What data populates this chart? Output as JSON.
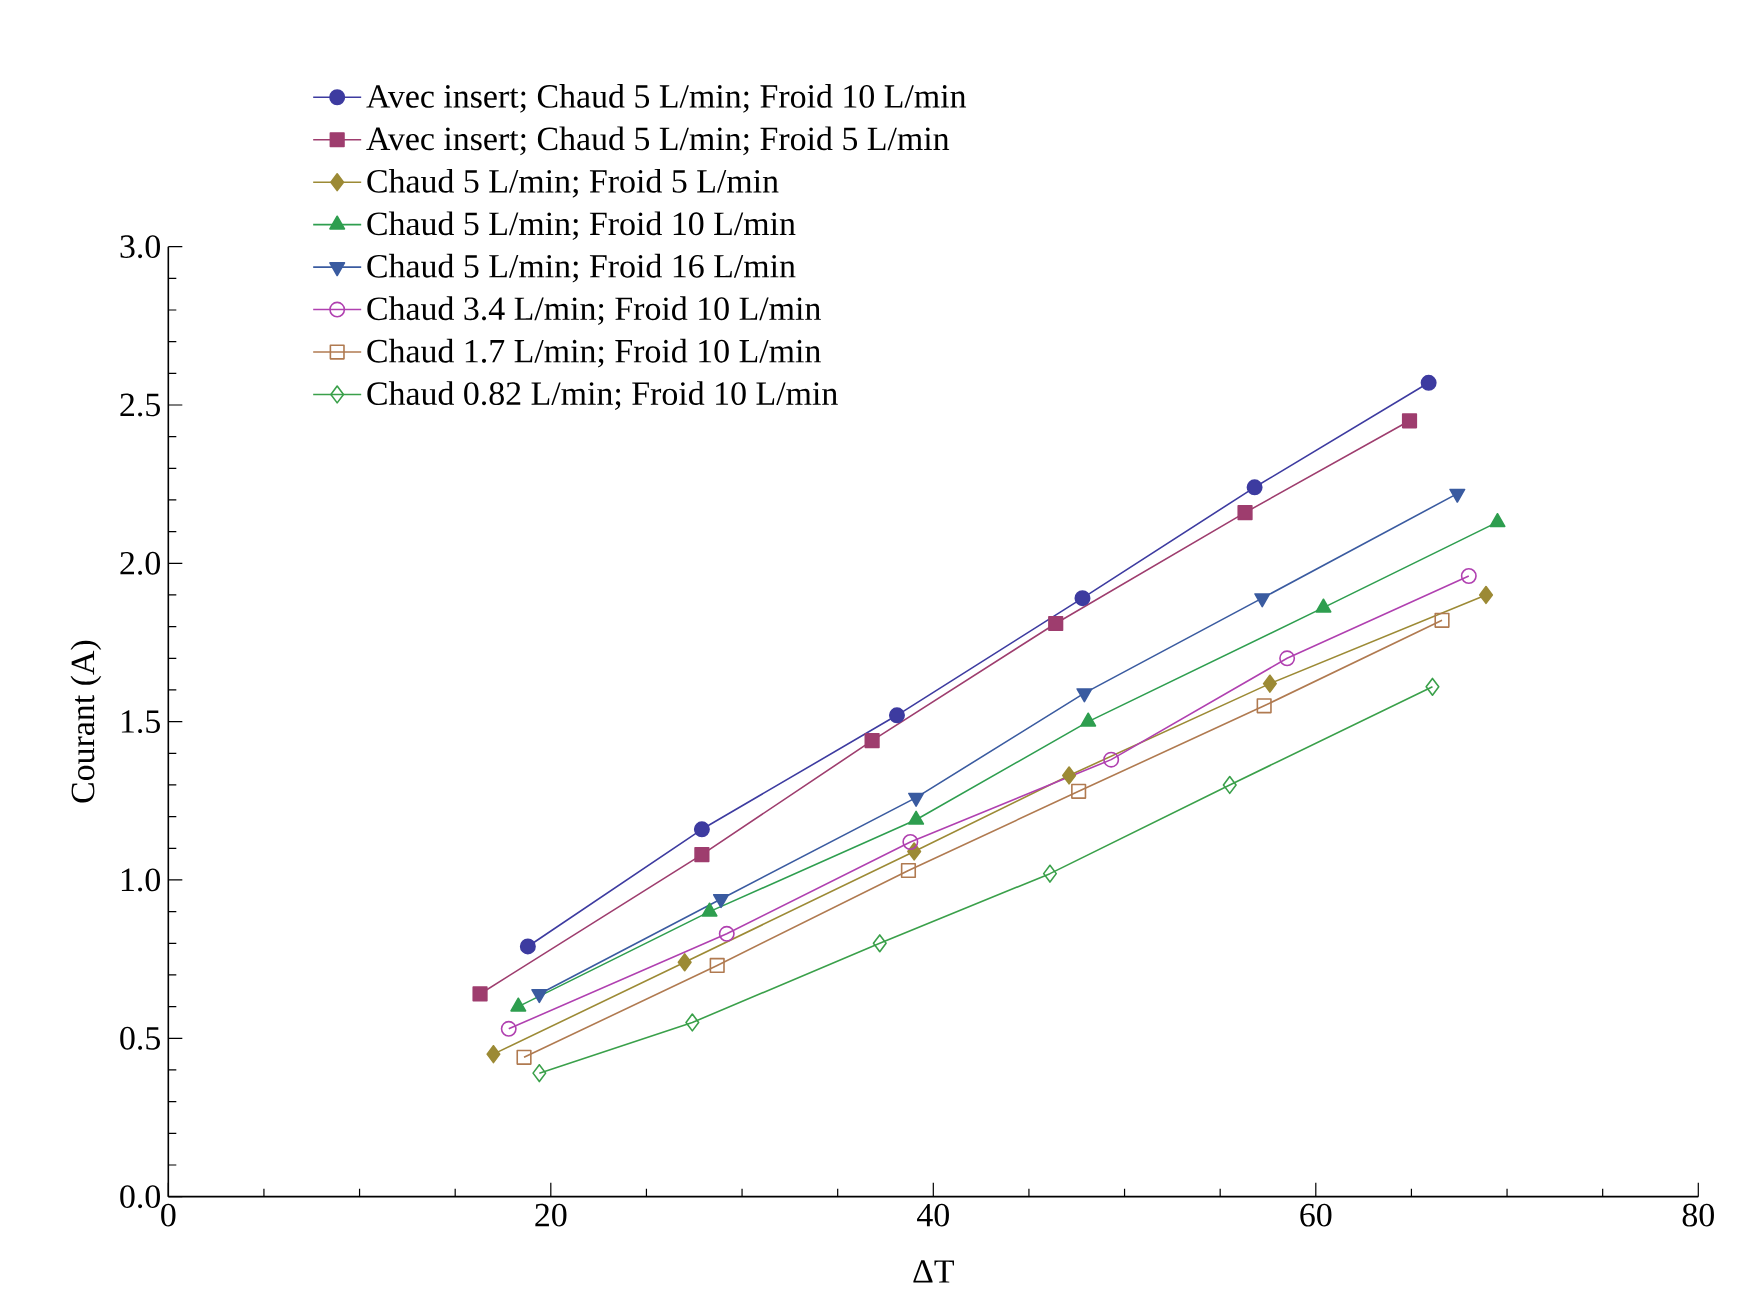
{
  "chart_data": {
    "type": "line",
    "xlabel": "ΔT",
    "ylabel": "Courant (A)",
    "xlim": [
      0,
      80
    ],
    "xticks": [
      0,
      20,
      40,
      60,
      80
    ],
    "ylim": [
      0,
      3.0
    ],
    "yticks": [
      {
        "value": 0,
        "label": "0.0"
      },
      {
        "value": 0.5,
        "label": "0.5"
      },
      {
        "value": 1.0,
        "label": "1.0"
      },
      {
        "value": 1.5,
        "label": "1.5"
      },
      {
        "value": 2.0,
        "label": "2.0"
      },
      {
        "value": 2.5,
        "label": "2.5"
      },
      {
        "value": 3.0,
        "label": "3.0"
      }
    ],
    "legend": "top left",
    "line_style": "solid",
    "series": [
      {
        "name": "Avec insert; Chaud 5 L/min; Froid 10 L/min",
        "color": "#3d3ba0",
        "marker": "circle",
        "x": [
          18.8,
          27.9,
          38.1,
          47.8,
          56.8,
          65.9
        ],
        "values": [
          0.79,
          1.16,
          1.52,
          1.89,
          2.24,
          2.57
        ]
      },
      {
        "name": "Avec insert; Chaud 5 L/min; Froid 5 L/min",
        "color": "#9e3d6e",
        "marker": "square",
        "x": [
          16.3,
          27.9,
          36.8,
          46.4,
          56.3,
          64.9
        ],
        "values": [
          0.64,
          1.08,
          1.44,
          1.81,
          2.16,
          2.45
        ]
      },
      {
        "name": "Chaud 5 L/min; Froid 5 L/min",
        "color": "#9c8a35",
        "marker": "diamond",
        "x": [
          17.0,
          27.0,
          39.0,
          47.1,
          57.6,
          68.9
        ],
        "values": [
          0.45,
          0.74,
          1.09,
          1.33,
          1.62,
          1.9
        ]
      },
      {
        "name": "Chaud 5 L/min; Froid 10 L/min",
        "color": "#2e9e4f",
        "marker": "triangle",
        "x": [
          18.3,
          28.3,
          39.1,
          48.1,
          60.4,
          69.5
        ],
        "values": [
          0.6,
          0.9,
          1.19,
          1.5,
          1.86,
          2.13
        ]
      },
      {
        "name": "Chaud 5 L/min; Froid 16 L/min",
        "color": "#3a5ba0",
        "marker": "triangle-down",
        "x": [
          19.4,
          28.9,
          39.1,
          47.9,
          57.2,
          67.4
        ],
        "values": [
          0.64,
          0.94,
          1.26,
          1.59,
          1.89,
          2.22
        ]
      },
      {
        "name": "Chaud 3.4 L/min; Froid 10 L/min",
        "color": "#b040b0",
        "marker": "circle-open",
        "x": [
          17.8,
          29.2,
          38.8,
          49.3,
          58.5,
          68.0
        ],
        "values": [
          0.53,
          0.83,
          1.12,
          1.38,
          1.7,
          1.96
        ]
      },
      {
        "name": "Chaud 1.7 L/min; Froid 10 L/min",
        "color": "#b07a50",
        "marker": "square-open",
        "x": [
          18.6,
          28.7,
          38.7,
          47.6,
          57.3,
          66.6
        ],
        "values": [
          0.44,
          0.73,
          1.03,
          1.28,
          1.55,
          1.82
        ]
      },
      {
        "name": "Chaud 0.82 L/min; Froid 10 L/min",
        "color": "#3aa04a",
        "marker": "diamond-open",
        "x": [
          19.4,
          27.4,
          37.2,
          46.1,
          55.5,
          66.1
        ],
        "values": [
          0.39,
          0.55,
          0.8,
          1.02,
          1.3,
          1.61
        ]
      }
    ]
  }
}
